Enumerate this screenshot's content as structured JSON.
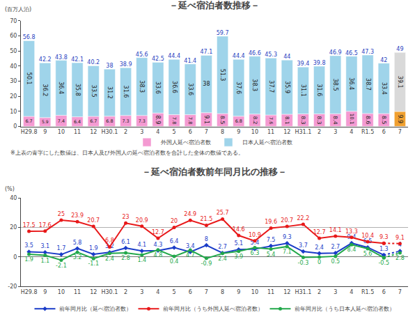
{
  "chart_data": [
    {
      "type": "bar",
      "title": "－延べ宿泊者数推移－",
      "y_label": "(百万人泊)",
      "note": "※上表の青字にした数値は、日本人及び外国人の延べ宿泊者数を合計した全体の数値である。",
      "categories": [
        "H29.8",
        "9",
        "10",
        "11",
        "12",
        "H30.1",
        "2",
        "3",
        "4",
        "5",
        "6",
        "7",
        "8",
        "9",
        "10",
        "11",
        "12",
        "H31.1",
        "2",
        "3",
        "4",
        "R1.5",
        "6",
        "7"
      ],
      "stacked": true,
      "data_labels": true,
      "grid": false,
      "legend": "bottom",
      "ylim": [
        0,
        70
      ],
      "yticks": [
        0,
        10,
        20,
        30,
        40,
        50,
        60,
        70
      ],
      "series": [
        {
          "name": "外国人延べ宿泊者数",
          "colors": [
            "#f49ad2",
            "#f49ad2",
            "#f49ad2",
            "#f49ad2",
            "#f49ad2",
            "#f49ad2",
            "#f49ad2",
            "#f49ad2",
            "#f49ad2",
            "#f49ad2",
            "#f49ad2",
            "#f49ad2",
            "#f49ad2",
            "#f49ad2",
            "#f49ad2",
            "#f49ad2",
            "#f49ad2",
            "#f49ad2",
            "#f49ad2",
            "#f49ad2",
            "#f49ad2",
            "#f49ad2",
            "#f49ad2",
            "#f0a030"
          ],
          "color": "#f49ad2",
          "values": [
            6.7,
            5.9,
            7.4,
            6.4,
            6.7,
            6.8,
            7.3,
            7.3,
            8.9,
            7.8,
            7.8,
            9.1,
            8.5,
            6.8,
            8.2,
            7.6,
            8.1,
            8.3,
            8.3,
            8.4,
            10.1,
            8.6,
            8.5,
            9.9
          ]
        },
        {
          "name": "日本人延べ宿泊者数",
          "colors": [
            "#9fd4ea",
            "#9fd4ea",
            "#9fd4ea",
            "#9fd4ea",
            "#9fd4ea",
            "#9fd4ea",
            "#9fd4ea",
            "#9fd4ea",
            "#9fd4ea",
            "#9fd4ea",
            "#9fd4ea",
            "#9fd4ea",
            "#9fd4ea",
            "#9fd4ea",
            "#9fd4ea",
            "#9fd4ea",
            "#9fd4ea",
            "#9fd4ea",
            "#9fd4ea",
            "#9fd4ea",
            "#9fd4ea",
            "#9fd4ea",
            "#9fd4ea",
            "#d9d9d9"
          ],
          "color": "#9fd4ea",
          "values": [
            50.1,
            36.2,
            36.4,
            35.8,
            33.5,
            31.2,
            31.6,
            38.3,
            33.6,
            36.6,
            33.6,
            38.0,
            51.3,
            37.6,
            38.3,
            37.7,
            35.9,
            31.1,
            31.6,
            38.5,
            36.4,
            38.7,
            33.4,
            39.1
          ]
        }
      ],
      "totals": {
        "color": "#1f3fbf",
        "values": [
          56.8,
          42.2,
          43.8,
          42.1,
          40.2,
          38.0,
          38.9,
          45.6,
          42.5,
          44.4,
          41.4,
          47.1,
          59.7,
          44.4,
          46.6,
          45.3,
          44.0,
          39.4,
          39.8,
          46.9,
          46.5,
          47.3,
          42.0,
          49.0
        ]
      }
    },
    {
      "type": "line",
      "title": "－延べ宿泊者数前年同月比の推移－",
      "y_label": "(%)",
      "categories": [
        "H29.8",
        "9",
        "10",
        "11",
        "12",
        "H30.1",
        "2",
        "3",
        "4",
        "5",
        "6",
        "7",
        "8",
        "9",
        "10",
        "11",
        "12",
        "H31.1",
        "2",
        "3",
        "4",
        "R1.5",
        "6",
        "7"
      ],
      "data_labels": true,
      "grid": true,
      "legend": "bottom",
      "ylim": [
        -20,
        40
      ],
      "yticks": [
        -20,
        0,
        20,
        40
      ],
      "series": [
        {
          "name": "前年同月比（延べ宿泊者数）",
          "color": "#1a3cc8",
          "marker": "diamond",
          "values": [
            3.5,
            3.1,
            1.7,
            5.8,
            1.9,
            3.2,
            6.1,
            4.1,
            4.3,
            6.4,
            3.4,
            8.0,
            2.7,
            5.1,
            5.4,
            7.5,
            9.3,
            3.7,
            2.4,
            2.7,
            9.4,
            6.5,
            1.3,
            4.0
          ]
        },
        {
          "name": "前年同月比（うち外国人延べ宿泊者数）",
          "color": "#e8191a",
          "marker": "circle",
          "values": [
            17.5,
            17.6,
            25.0,
            23.9,
            20.7,
            6.8,
            23.0,
            20.9,
            12.7,
            20.0,
            24.9,
            21.5,
            25.7,
            14.6,
            10.9,
            19.6,
            20.7,
            22.2,
            12.7,
            14.1,
            13.3,
            10.4,
            9.3,
            9.1
          ]
        },
        {
          "name": "前年同月比（うち日本人延べ宿泊者数）",
          "color": "#22a84a",
          "marker": "circle",
          "values": [
            1.9,
            1.1,
            -2.1,
            3.2,
            -1.1,
            2.4,
            2.8,
            1.4,
            4.8,
            0.4,
            4.7,
            -0.9,
            2.4,
            3.9,
            6.3,
            5.4,
            7.1,
            -0.3,
            0.0,
            0.5,
            8.4,
            5.6,
            -0.5,
            2.8
          ]
        }
      ]
    }
  ]
}
